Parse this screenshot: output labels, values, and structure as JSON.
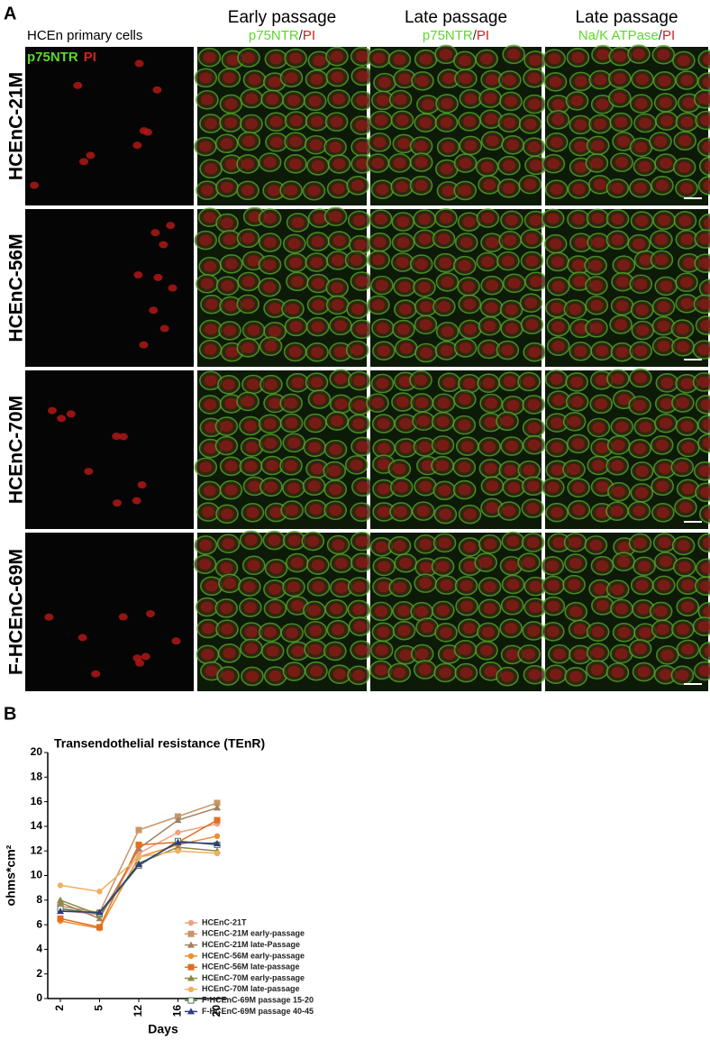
{
  "panel_a": {
    "label": "A",
    "row_header": "HCEn primary cells",
    "inset": [
      "p75NTR",
      "PI"
    ],
    "columns": [
      {
        "title": "Early passage",
        "stain": [
          "p75NTR",
          "/",
          "PI"
        ]
      },
      {
        "title": "Late passage",
        "stain": [
          "p75NTR",
          "/",
          "PI"
        ]
      },
      {
        "title": "Late passage",
        "stain": [
          "Na/K ATPase",
          "/",
          "PI"
        ]
      }
    ],
    "rows": [
      "HCEnC-21M",
      "HCEnC-56M",
      "HCEnC-70M",
      "F-HCEnC-69M"
    ]
  },
  "panel_b": {
    "label": "B"
  },
  "chart_data": {
    "type": "line",
    "title": "Transendothelial resistance (TEnR)",
    "x_label": "Days",
    "y_label": "ohms*cm²",
    "categories": [
      "2",
      "5",
      "12",
      "16",
      "20"
    ],
    "ylim": [
      0,
      20
    ],
    "yticks": [
      0,
      2,
      4,
      6,
      8,
      10,
      12,
      14,
      16,
      18,
      20
    ],
    "series": [
      {
        "name": "HCEnC-21T",
        "color": "#f0a080",
        "values": [
          7.2,
          6.8,
          11.8,
          13.5,
          14.2
        ]
      },
      {
        "name": "HCEnC-21M early-passage",
        "color": "#c8956a",
        "values": [
          7.5,
          7.0,
          13.7,
          14.8,
          15.9
        ]
      },
      {
        "name": "HCEnC-21M late-Passage",
        "color": "#a08060",
        "values": [
          7.8,
          6.5,
          12.2,
          14.5,
          15.5
        ]
      },
      {
        "name": "HCEnC-56M early-passage",
        "color": "#f08c30",
        "values": [
          6.3,
          5.7,
          11.5,
          12.5,
          13.2
        ]
      },
      {
        "name": "HCEnC-56M late-passage",
        "color": "#e07020",
        "values": [
          6.5,
          5.8,
          12.5,
          12.7,
          14.5
        ]
      },
      {
        "name": "HCEnC-70M early-passage",
        "color": "#8a8a40",
        "values": [
          8.0,
          6.8,
          11.0,
          12.3,
          12.0
        ]
      },
      {
        "name": "HCEnC-70M late-passage",
        "color": "#f0b060",
        "values": [
          9.2,
          8.7,
          11.5,
          12.0,
          11.8
        ]
      },
      {
        "name": "F-HCEnC-69M passage 15-20",
        "color": "#4a7a4a",
        "values": [
          7.3,
          6.9,
          10.8,
          12.8,
          12.5
        ]
      },
      {
        "name": "F-HCEnC-69M passage 40-45",
        "color": "#303a80",
        "values": [
          7.1,
          7.0,
          10.9,
          12.7,
          12.6
        ]
      }
    ]
  }
}
